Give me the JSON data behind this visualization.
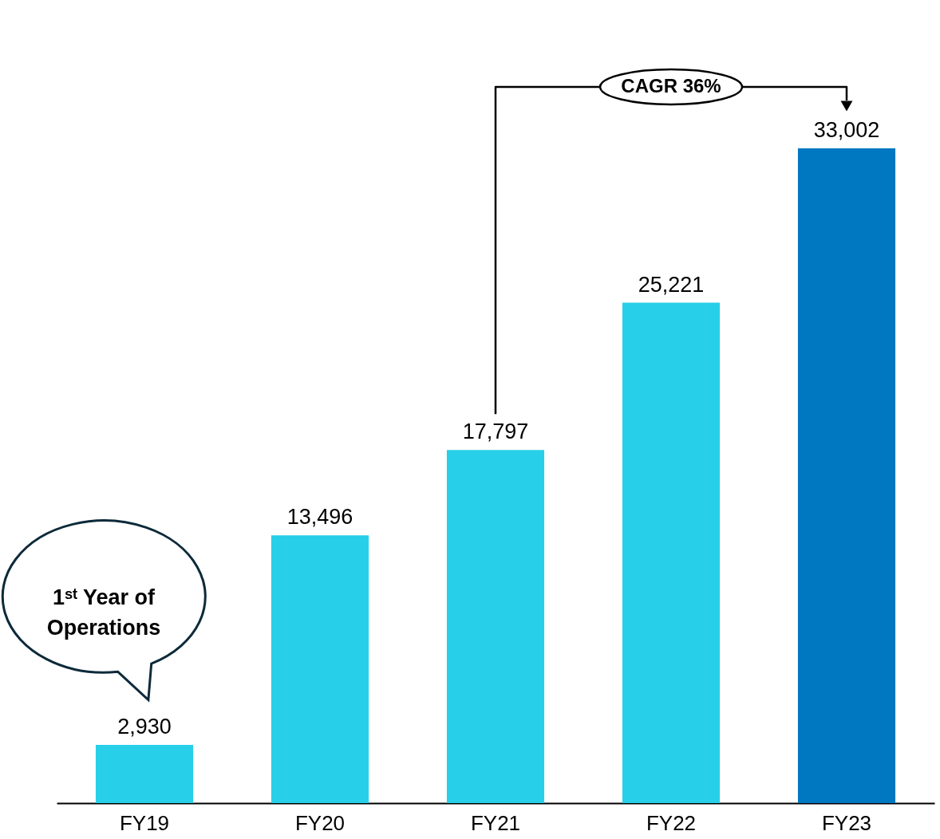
{
  "chart_data": {
    "type": "bar",
    "categories": [
      "FY19",
      "FY20",
      "FY21",
      "FY22",
      "FY23"
    ],
    "values": [
      2930,
      13496,
      17797,
      25221,
      33002
    ],
    "value_labels": [
      "2,930",
      "13,496",
      "17,797",
      "25,221",
      "33,002"
    ],
    "colors": [
      "#27cfe8",
      "#27cfe8",
      "#27cfe8",
      "#27cfe8",
      "#0077c1"
    ],
    "tick_labels": "x",
    "annotations": [
      "CAGR 36%",
      "1ˢᵗ Year of Operations"
    ]
  }
}
